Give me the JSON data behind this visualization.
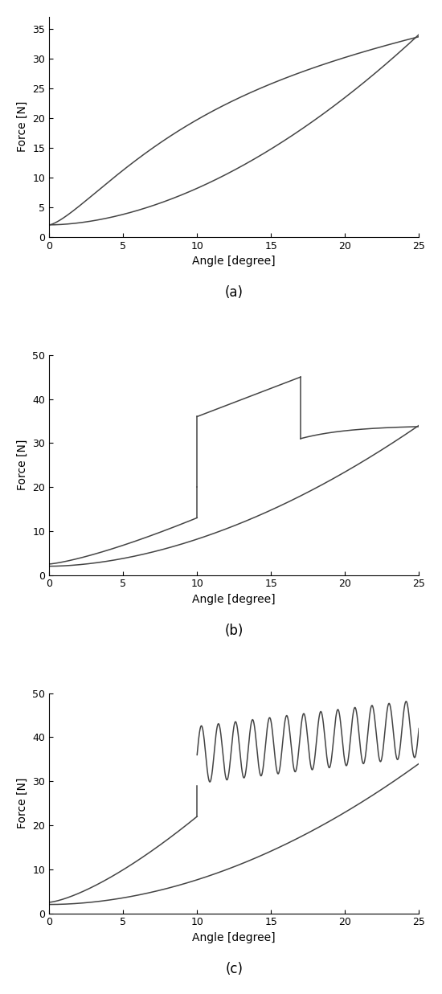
{
  "subplot_a": {
    "ylabel": "Force [N]",
    "xlabel": "Angle [degree]",
    "xlim": [
      0,
      25
    ],
    "ylim": [
      0,
      37
    ],
    "yticks": [
      0,
      5,
      10,
      15,
      20,
      25,
      30,
      35
    ],
    "xticks": [
      0,
      5,
      10,
      15,
      20,
      25
    ],
    "label": "(a)"
  },
  "subplot_b": {
    "ylabel": "Force [N]",
    "xlabel": "Angle [degree]",
    "xlim": [
      0,
      25
    ],
    "ylim": [
      0,
      50
    ],
    "yticks": [
      0,
      10,
      20,
      30,
      40,
      50
    ],
    "xticks": [
      0,
      5,
      10,
      15,
      20,
      25
    ],
    "label": "(b)"
  },
  "subplot_c": {
    "ylabel": "Force [N]",
    "xlabel": "Angle [degree]",
    "xlim": [
      0,
      25
    ],
    "ylim": [
      0,
      50
    ],
    "yticks": [
      0,
      10,
      20,
      30,
      40,
      50
    ],
    "xticks": [
      0,
      5,
      10,
      15,
      20,
      25
    ],
    "label": "(c)"
  },
  "line_color": "#444444",
  "line_width": 1.1,
  "background_color": "#ffffff",
  "label_fontsize": 10,
  "tick_fontsize": 9
}
